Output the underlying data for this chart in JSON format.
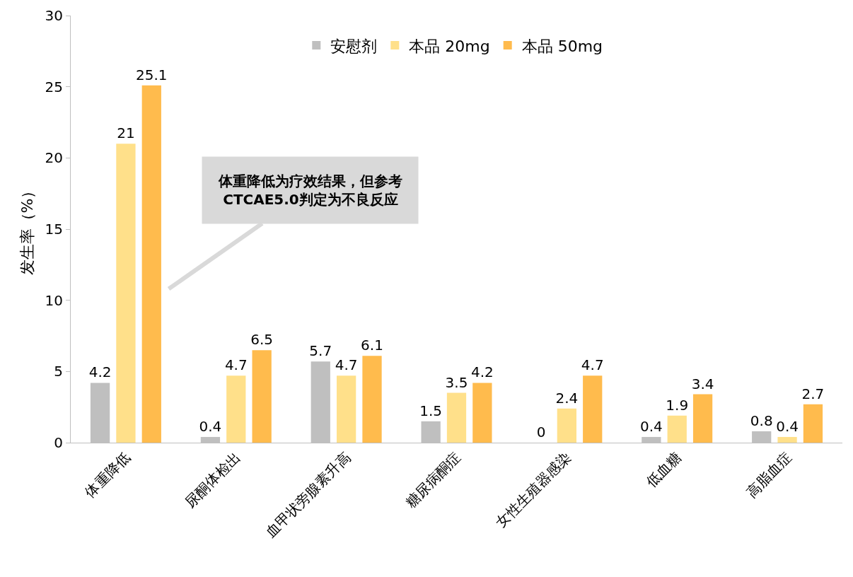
{
  "chart_data": {
    "type": "bar",
    "ylabel": "发生率（%）",
    "categories": [
      "体重降低",
      "尿酮体检出",
      "血甲状旁腺素升高",
      "糖尿病酮症",
      "女性生殖器感染",
      "低血糖",
      "高脂血症"
    ],
    "series": [
      {
        "name": "安慰剂",
        "color": "#bfbfbf",
        "values": [
          4.2,
          0.4,
          5.7,
          1.5,
          0,
          0.4,
          0.8
        ]
      },
      {
        "name": "本品 20mg",
        "color": "#ffe08a",
        "values": [
          21,
          4.7,
          4.7,
          3.5,
          2.4,
          1.9,
          0.4
        ]
      },
      {
        "name": "本品 50mg",
        "color": "#ffbb4d",
        "values": [
          25.1,
          6.5,
          6.1,
          4.2,
          4.7,
          3.4,
          2.7
        ]
      }
    ],
    "ylim": [
      0,
      30
    ],
    "yticks": [
      0,
      5,
      10,
      15,
      20,
      25,
      30
    ],
    "grid": false,
    "legend": "top",
    "data_labels": true,
    "annotations": [
      "体重降低为疗效结果，但参考\nCTCAE5.0判定为不良反应"
    ]
  }
}
